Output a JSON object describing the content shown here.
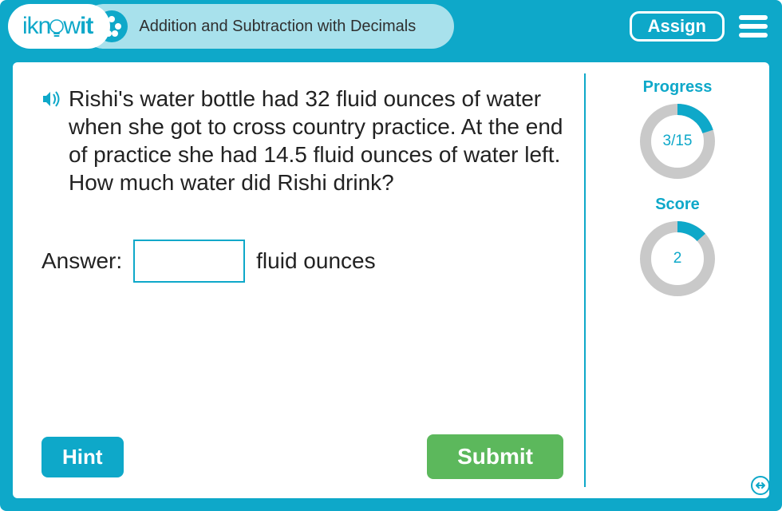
{
  "colors": {
    "primary": "#0ea8c9",
    "header_pill": "#a8e1ec",
    "panel_bg": "#ffffff",
    "text": "#222222",
    "submit_bg": "#5cb85c",
    "ring_track": "#c9c9c9",
    "ring_fill": "#0ea8c9"
  },
  "header": {
    "logo_pre": "ikn",
    "logo_post": "w",
    "logo_bold": "it",
    "lesson_title": "Addition and Subtraction with Decimals",
    "assign_label": "Assign"
  },
  "question": {
    "text": "Rishi's water bottle had 32 fluid ounces of water when she got to cross country practice. At the end of practice she had 14.5 fluid ounces of water left. How much water did Rishi drink?",
    "answer_label": "Answer:",
    "answer_unit": "fluid ounces",
    "answer_value": ""
  },
  "buttons": {
    "hint": "Hint",
    "submit": "Submit"
  },
  "progress": {
    "title": "Progress",
    "current": 3,
    "total": 15,
    "label": "3/15",
    "ring": {
      "radius": 40,
      "stroke": 14,
      "track_color": "#c9c9c9",
      "fill_color": "#0ea8c9"
    }
  },
  "score": {
    "title": "Score",
    "value": 2,
    "max": 15,
    "label": "2",
    "ring": {
      "radius": 40,
      "stroke": 14,
      "track_color": "#c9c9c9",
      "fill_color": "#0ea8c9"
    }
  }
}
